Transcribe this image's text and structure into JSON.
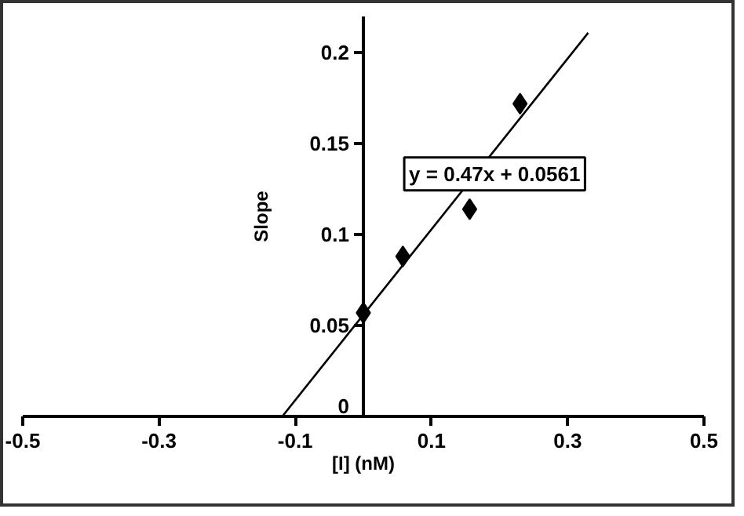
{
  "chart_data": {
    "type": "scatter",
    "xlabel": "[I] (nM)",
    "ylabel": "Slope",
    "xlim": [
      -0.5,
      0.5
    ],
    "xticks": [
      -0.5,
      -0.3,
      -0.1,
      0.1,
      0.3,
      0.5
    ],
    "ylim": [
      0,
      0.22
    ],
    "yticks": [
      0,
      0.05,
      0.1,
      0.15,
      0.2
    ],
    "grid": false,
    "marker": "diamond",
    "series": [
      {
        "type": "scatter",
        "color": "#000000",
        "x": [
          0,
          0.058,
          0.156,
          0.23
        ],
        "values": [
          0.057,
          0.088,
          0.114,
          0.172
        ]
      },
      {
        "type": "line",
        "color": "#000000",
        "line_style": "solid",
        "marker": "none",
        "x": [
          -0.119,
          0.33
        ],
        "values": [
          0,
          0.211
        ]
      }
    ],
    "annotations": [
      "y = 0.47x + 0.0561"
    ]
  }
}
